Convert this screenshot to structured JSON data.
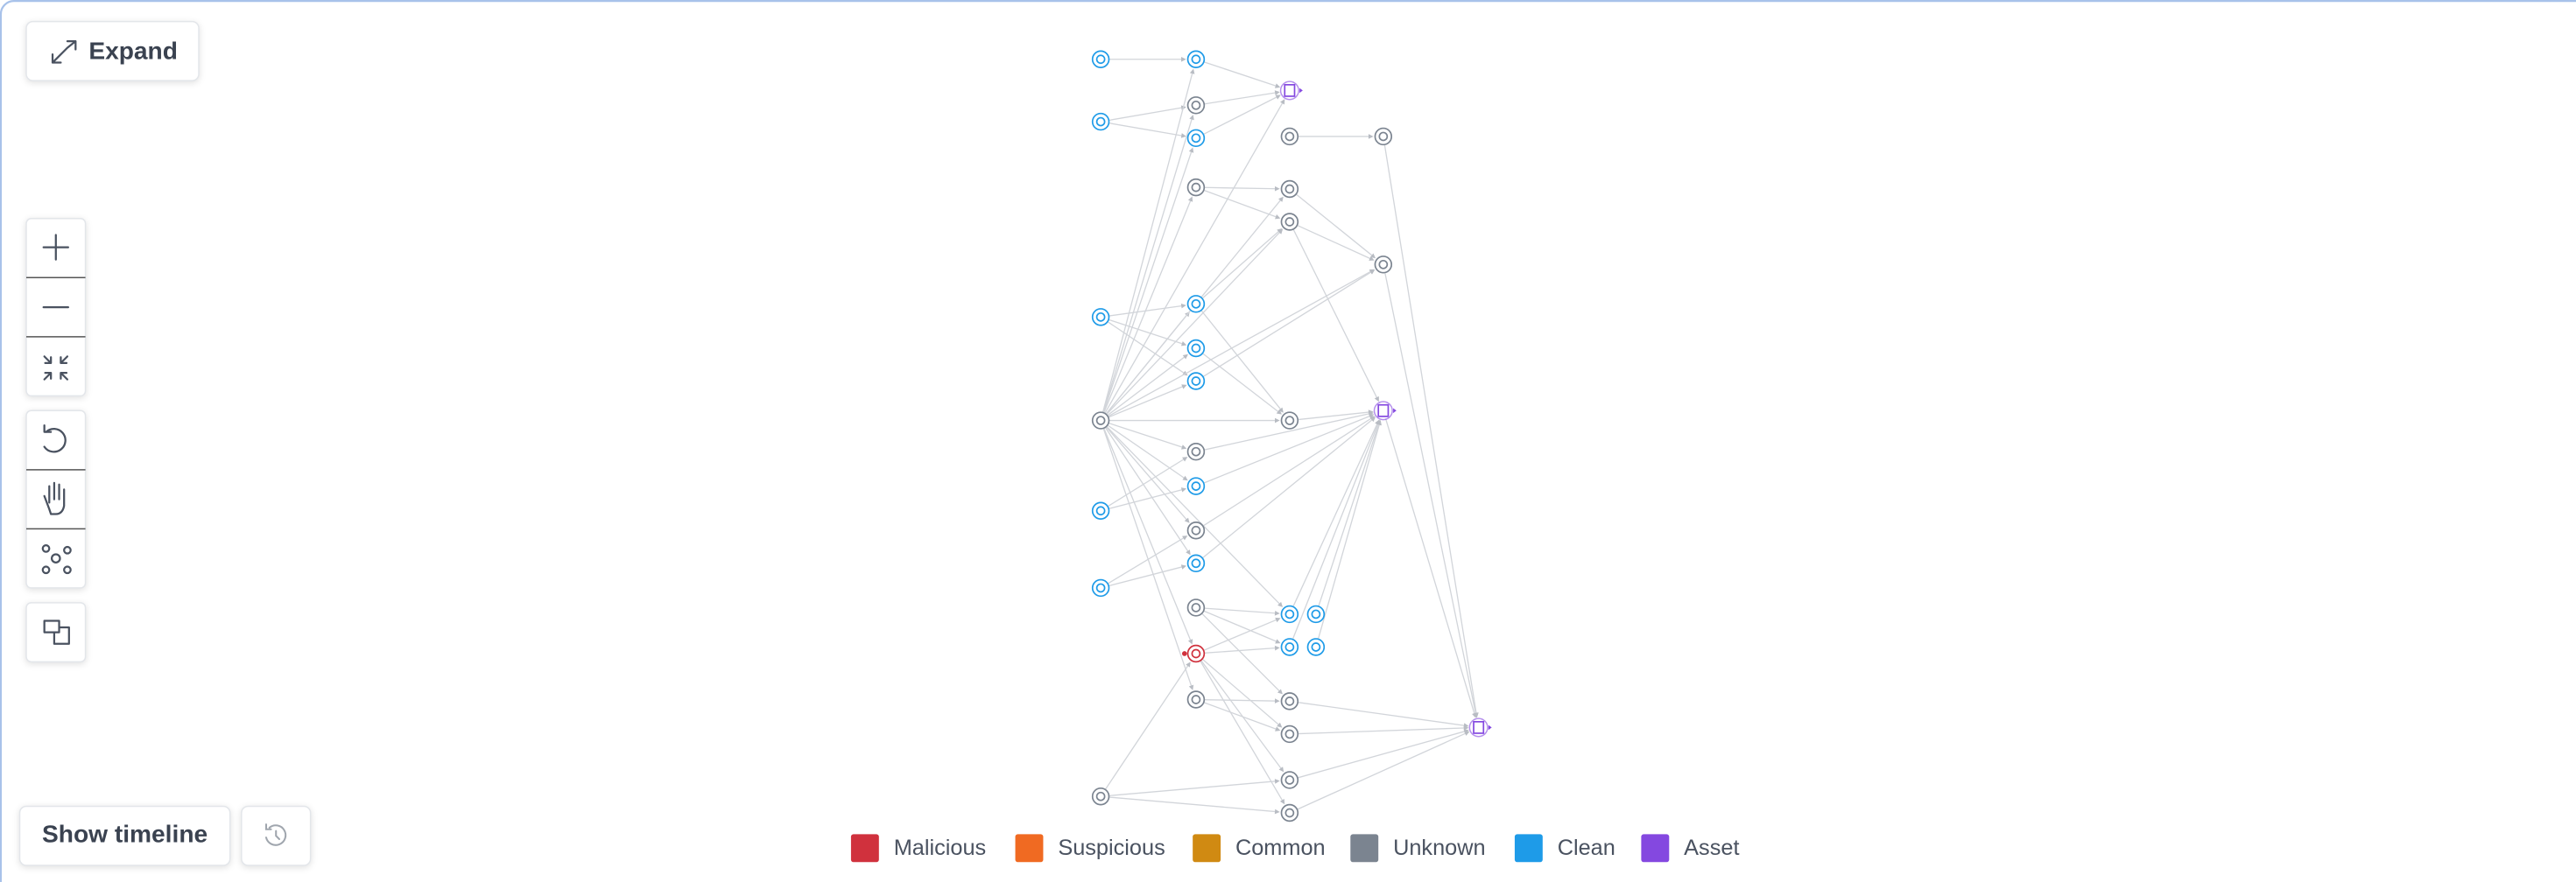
{
  "expand_button": {
    "label": "Expand"
  },
  "show_timeline_button": {
    "label": "Show timeline"
  },
  "legend": {
    "items": [
      {
        "label": "Malicious",
        "color": "#d0313d"
      },
      {
        "label": "Suspicious",
        "color": "#f06a22"
      },
      {
        "label": "Common",
        "color": "#d08a12"
      },
      {
        "label": "Unknown",
        "color": "#7b8490"
      },
      {
        "label": "Clean",
        "color": "#1e9be8"
      },
      {
        "label": "Asset",
        "color": "#8448e0"
      }
    ]
  }
}
